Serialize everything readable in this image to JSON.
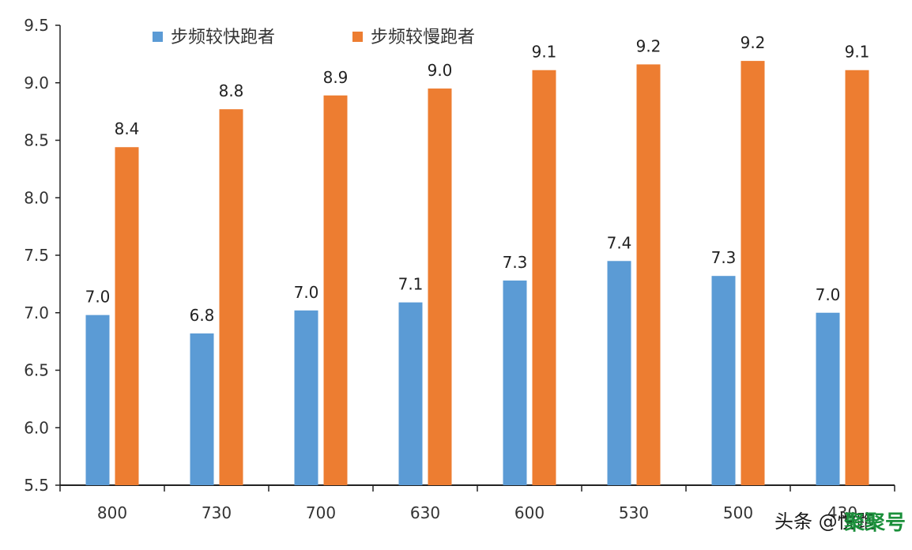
{
  "chart_data": {
    "type": "bar",
    "categories": [
      "800",
      "730",
      "700",
      "630",
      "600",
      "530",
      "500",
      "430"
    ],
    "series": [
      {
        "name": "步频较快跑者",
        "color": "#5b9bd5",
        "values": [
          6.98,
          6.82,
          7.02,
          7.09,
          7.28,
          7.45,
          7.32,
          7.0
        ],
        "labels": [
          "7.0",
          "6.8",
          "7.0",
          "7.1",
          "7.3",
          "7.4",
          "7.3",
          "7.0"
        ]
      },
      {
        "name": "步频较慢跑者",
        "color": "#ed7d31",
        "values": [
          8.44,
          8.77,
          8.89,
          8.95,
          9.11,
          9.16,
          9.19,
          9.11
        ],
        "labels": [
          "8.4",
          "8.8",
          "8.9",
          "9.0",
          "9.1",
          "9.2",
          "9.2",
          "9.1"
        ]
      }
    ],
    "ylim": [
      5.5,
      9.5
    ],
    "yticks": [
      "5.5",
      "6.0",
      "6.5",
      "7.0",
      "7.5",
      "8.0",
      "8.5",
      "9.0",
      "9.5"
    ],
    "title": "",
    "xlabel": "",
    "ylabel": "",
    "grid": false,
    "legend_position": "top-center"
  },
  "watermark": {
    "text": "头条 @悦跑",
    "logo": "聚聚号"
  }
}
